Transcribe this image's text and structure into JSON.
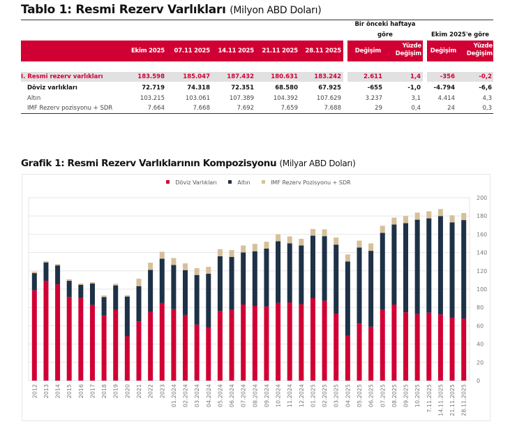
{
  "table": {
    "title": "Tablo 1: Resmi Rezerv Varlıkları",
    "title_unit": "(Milyon ABD Doları)",
    "group_headers": {
      "weekly_line1": "Bir önceki haftaya",
      "weekly_line2": "göre",
      "monthly": "Ekim 2025'e göre"
    },
    "columns": [
      "Ekim 2025",
      "07.11 2025",
      "14.11 2025",
      "21.11 2025",
      "28.11 2025"
    ],
    "change_columns": {
      "change": "Değişim",
      "pct_line1": "Yüzde",
      "pct_line2": "Değişim"
    },
    "rows": [
      {
        "label": "I. Resmi rezerv varlıkları",
        "values": [
          "183.598",
          "185.047",
          "187.432",
          "180.631",
          "183.242"
        ],
        "w_change": "2.611",
        "w_pct": "1,4",
        "m_change": "-356",
        "m_pct": "-0,2"
      },
      {
        "label": "Döviz varlıkları",
        "values": [
          "72.719",
          "74.318",
          "72.351",
          "68.580",
          "67.925"
        ],
        "w_change": "-655",
        "w_pct": "-1,0",
        "m_change": "-4.794",
        "m_pct": "-6,6"
      },
      {
        "label": "Altın",
        "values": [
          "103.215",
          "103.061",
          "107.389",
          "104.392",
          "107.629"
        ],
        "w_change": "3.237",
        "w_pct": "3,1",
        "m_change": "4.414",
        "m_pct": "4,3"
      },
      {
        "label": "IMF Rezerv pozisyonu + SDR",
        "values": [
          "7.664",
          "7.668",
          "7.692",
          "7.659",
          "7.688"
        ],
        "w_change": "29",
        "w_pct": "0,4",
        "m_change": "24",
        "m_pct": "0,3"
      }
    ]
  },
  "colors": {
    "accent_red": "#d10034",
    "navy": "#1d3147",
    "tan": "#d6c09a",
    "band_grey": "#e1e1e1"
  },
  "chart_data": {
    "type": "bar",
    "stacked": true,
    "title": "Grafik 1: Resmi Rezerv Varlıklarının Kompozisyonu",
    "subtitle": "(Milyar ABD Doları)",
    "xlabel": "",
    "ylabel": "",
    "ylim": [
      0,
      200
    ],
    "yticks": [
      0,
      20,
      40,
      60,
      80,
      100,
      120,
      140,
      160,
      180,
      200
    ],
    "y_axis_side": "right",
    "grid": true,
    "legend_position": "top-center",
    "categories": [
      "2012",
      "2013",
      "2014",
      "2015",
      "2016",
      "2017",
      "2018",
      "2019",
      "2020",
      "2021",
      "2022",
      "2023",
      "01.2024",
      "02.2024",
      "03.2024",
      "04.2024",
      "05.2024",
      "06.2024",
      "07.2024",
      "08.2024",
      "09.2024",
      "10.2024",
      "11.2024",
      "12.2024",
      "01.2025",
      "02.2025",
      "03.2025",
      "04.2025",
      "05.2025",
      "06.2025",
      "07.2025",
      "08.2025",
      "09.2025",
      "10.2025",
      "7.11.2025",
      "14.11.2025",
      "21.11.2025",
      "28.11.2025"
    ],
    "series": [
      {
        "name": "Döviz Varlıkları",
        "color": "#d10034",
        "values": [
          98.7,
          109.1,
          105.3,
          91.4,
          90.3,
          82.7,
          71.1,
          77.2,
          48.5,
          64.7,
          75.1,
          84.8,
          78.0,
          71.8,
          61.2,
          58.4,
          76.1,
          77.2,
          83.2,
          81.7,
          81.0,
          85.0,
          85.5,
          83.5,
          90.1,
          87.3,
          73.3,
          49.2,
          62.4,
          58.9,
          77.4,
          83.2,
          74.6,
          72.7,
          74.3,
          72.4,
          68.6,
          67.9
        ]
      },
      {
        "name": "Altın",
        "color": "#1d3147",
        "values": [
          18.8,
          20.1,
          20.6,
          17.7,
          14.5,
          23.4,
          20.3,
          26.9,
          43.4,
          38.6,
          46.0,
          48.5,
          48.4,
          49.0,
          54.3,
          58.4,
          59.9,
          58.1,
          56.9,
          59.7,
          63.4,
          67.3,
          64.5,
          64.2,
          68.3,
          70.6,
          75.4,
          81.0,
          83.1,
          83.0,
          84.1,
          87.4,
          97.5,
          103.2,
          103.1,
          107.4,
          104.4,
          107.6
        ]
      },
      {
        "name": "IMF Rezerv Pozisyonu + SDR",
        "color": "#d6c09a",
        "values": [
          1.6,
          1.5,
          1.5,
          1.8,
          1.3,
          1.5,
          1.7,
          1.8,
          1.5,
          8.1,
          7.8,
          7.6,
          7.6,
          7.4,
          7.4,
          7.6,
          7.7,
          7.4,
          7.6,
          8.1,
          7.4,
          7.6,
          7.6,
          7.4,
          7.3,
          7.4,
          7.7,
          7.7,
          7.6,
          8.1,
          7.8,
          7.6,
          7.9,
          7.7,
          7.7,
          7.7,
          7.7,
          7.7
        ]
      }
    ]
  }
}
